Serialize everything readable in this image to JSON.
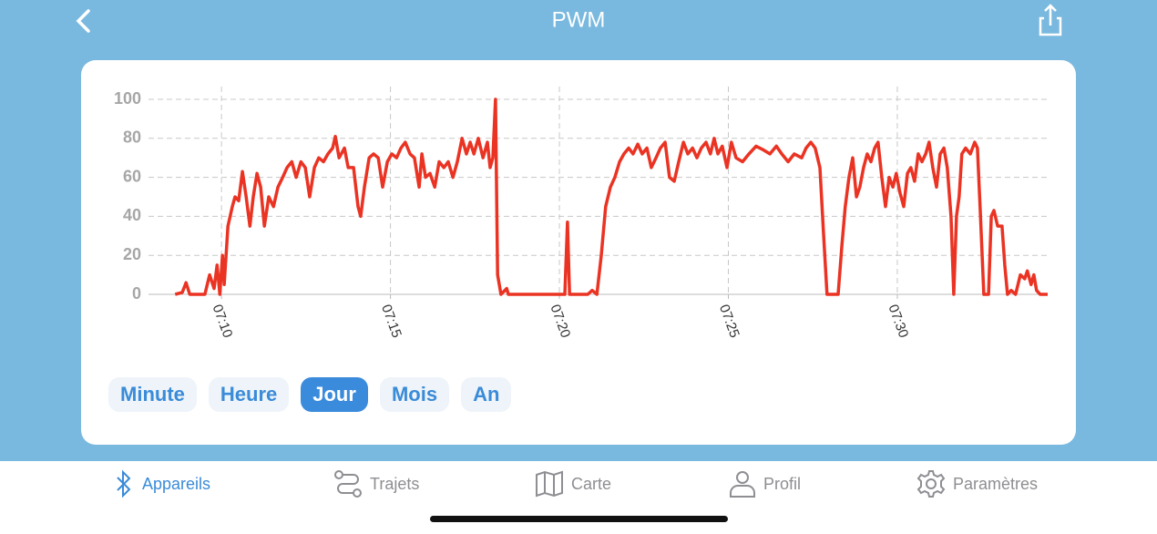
{
  "header": {
    "title": "PWM"
  },
  "chart_data": {
    "type": "line",
    "color": "#ea3323",
    "x": [
      428.63,
      428.84,
      428.95,
      429.06,
      429.51,
      429.65,
      429.78,
      429.87,
      429.95,
      430.03,
      430.08,
      430.19,
      430.32,
      430.4,
      430.51,
      430.62,
      430.73,
      430.84,
      430.94,
      431.05,
      431.16,
      431.27,
      431.4,
      431.54,
      431.67,
      431.81,
      431.94,
      432.08,
      432.21,
      432.35,
      432.48,
      432.61,
      432.75,
      432.88,
      433.02,
      433.15,
      433.29,
      433.37,
      433.48,
      433.64,
      433.75,
      433.91,
      434.04,
      434.12,
      434.23,
      434.37,
      434.5,
      434.64,
      434.77,
      434.91,
      435.04,
      435.18,
      435.31,
      435.44,
      435.58,
      435.71,
      435.85,
      435.93,
      436.04,
      436.17,
      436.31,
      436.44,
      436.58,
      436.71,
      436.85,
      436.98,
      437.12,
      437.25,
      437.36,
      437.47,
      437.6,
      437.74,
      437.87,
      437.95,
      438.03,
      438.11,
      438.17,
      438.27,
      438.44,
      438.49,
      440.16,
      440.24,
      440.3,
      440.84,
      440.97,
      441.11,
      441.24,
      441.37,
      441.51,
      441.64,
      441.78,
      441.91,
      442.05,
      442.18,
      442.32,
      442.45,
      442.59,
      442.72,
      442.86,
      442.99,
      443.13,
      443.26,
      443.4,
      443.53,
      443.67,
      443.8,
      443.94,
      444.07,
      444.2,
      444.34,
      444.47,
      444.58,
      444.69,
      444.82,
      444.96,
      445.09,
      445.23,
      445.42,
      445.61,
      445.82,
      446.04,
      446.23,
      446.42,
      446.58,
      446.77,
      446.95,
      447.17,
      447.3,
      447.44,
      447.57,
      447.71,
      447.82,
      447.92,
      448.25,
      448.36,
      448.46,
      448.57,
      448.68,
      448.79,
      448.89,
      449.0,
      449.11,
      449.22,
      449.33,
      449.43,
      449.54,
      449.65,
      449.76,
      449.87,
      449.97,
      450.08,
      450.19,
      450.3,
      450.4,
      450.51,
      450.62,
      450.73,
      450.84,
      450.94,
      451.05,
      451.16,
      451.27,
      451.38,
      451.48,
      451.59,
      451.67,
      451.75,
      451.83,
      451.91,
      452.02,
      452.16,
      452.29,
      452.37,
      452.45,
      452.56,
      452.7,
      452.78,
      452.86,
      452.97,
      453.1,
      453.18,
      453.26,
      453.37,
      453.5,
      453.64,
      453.77,
      453.85,
      453.96,
      454.04,
      454.12,
      454.23,
      454.45
    ],
    "values": [
      0,
      1,
      6,
      0,
      0,
      10,
      3,
      15,
      0,
      20,
      5,
      35,
      45,
      50,
      48,
      63,
      50,
      35,
      50,
      62,
      55,
      35,
      50,
      45,
      55,
      60,
      65,
      68,
      60,
      68,
      65,
      50,
      65,
      70,
      68,
      72,
      75,
      81,
      70,
      75,
      65,
      65,
      45,
      40,
      55,
      70,
      72,
      70,
      55,
      68,
      72,
      70,
      75,
      78,
      72,
      70,
      55,
      72,
      60,
      62,
      55,
      68,
      65,
      68,
      60,
      68,
      80,
      72,
      78,
      72,
      80,
      70,
      78,
      65,
      70,
      100,
      10,
      0,
      3,
      0,
      0,
      37,
      0,
      0,
      2,
      0,
      20,
      45,
      55,
      60,
      68,
      72,
      75,
      72,
      77,
      72,
      75,
      65,
      70,
      75,
      78,
      60,
      58,
      68,
      78,
      72,
      75,
      70,
      75,
      78,
      72,
      80,
      72,
      76,
      65,
      78,
      70,
      68,
      72,
      76,
      74,
      72,
      76,
      72,
      68,
      72,
      70,
      75,
      78,
      75,
      65,
      30,
      0,
      0,
      25,
      45,
      60,
      70,
      50,
      55,
      65,
      72,
      68,
      75,
      78,
      60,
      45,
      60,
      55,
      62,
      52,
      45,
      62,
      65,
      58,
      72,
      68,
      72,
      78,
      65,
      55,
      72,
      75,
      65,
      40,
      0,
      40,
      50,
      72,
      75,
      72,
      78,
      75,
      45,
      0,
      0,
      40,
      43,
      35,
      35,
      15,
      0,
      2,
      0,
      10,
      8,
      12,
      5,
      10,
      2,
      0,
      0
    ],
    "xlim": [
      427.84,
      454.45
    ],
    "ylim": [
      0,
      100
    ],
    "xticks": [
      {
        "value": 430,
        "label": "07:10"
      },
      {
        "value": 435,
        "label": "07:15"
      },
      {
        "value": 440,
        "label": "07:20"
      },
      {
        "value": 445,
        "label": "07:25"
      },
      {
        "value": 450,
        "label": "07:30"
      }
    ],
    "yticks": [
      0,
      20,
      40,
      60,
      80,
      100
    ],
    "grid": true
  },
  "periods": {
    "items": [
      "Minute",
      "Heure",
      "Jour",
      "Mois",
      "An"
    ],
    "selected": 2
  },
  "tabs": [
    {
      "label": "Appareils",
      "active": true
    },
    {
      "label": "Trajets",
      "active": false
    },
    {
      "label": "Carte",
      "active": false
    },
    {
      "label": "Profil",
      "active": false
    },
    {
      "label": "Paramètres",
      "active": false
    }
  ]
}
